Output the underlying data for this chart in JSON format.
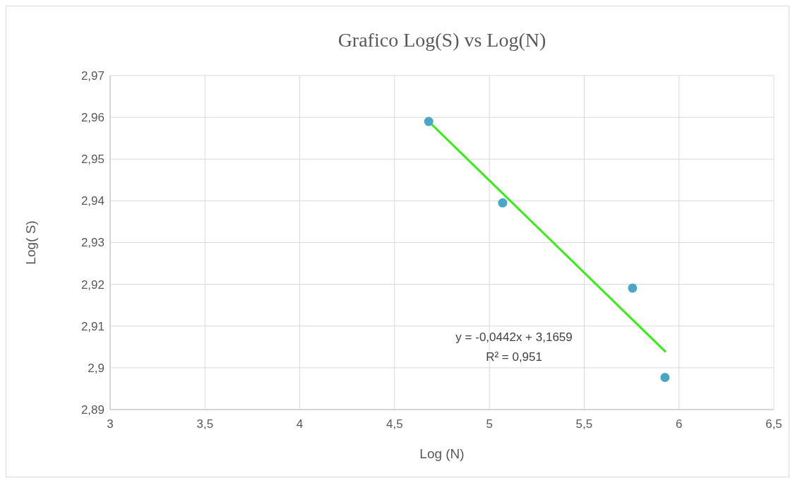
{
  "chart_data": {
    "type": "scatter",
    "title": "Grafico Log(S) vs Log(N)",
    "xlabel": "Log (N)",
    "ylabel": "Log( S)",
    "xlim": [
      3,
      6.5
    ],
    "ylim": [
      2.89,
      2.97
    ],
    "xticks": [
      3,
      {
        "value": 3.5,
        "label": "3,5"
      },
      4,
      {
        "value": 4.5,
        "label": "4,5"
      },
      5,
      {
        "value": 5.5,
        "label": "5,5"
      },
      6,
      {
        "value": 6.5,
        "label": "6,5"
      }
    ],
    "yticks": [
      {
        "value": 2.89,
        "label": "2,89"
      },
      {
        "value": 2.9,
        "label": "2,9"
      },
      {
        "value": 2.91,
        "label": "2,91"
      },
      {
        "value": 2.92,
        "label": "2,92"
      },
      {
        "value": 2.93,
        "label": "2,93"
      },
      {
        "value": 2.94,
        "label": "2,94"
      },
      {
        "value": 2.95,
        "label": "2,95"
      },
      {
        "value": 2.96,
        "label": "2,96"
      },
      {
        "value": 2.97,
        "label": "2,97"
      }
    ],
    "grid": true,
    "series": [
      {
        "marker": "circle",
        "color": "#4aa6c6",
        "x": [
          4.68,
          5.07,
          5.755,
          5.926
        ],
        "values": [
          2.959,
          2.9395,
          2.9191,
          2.8977
        ]
      },
      {
        "type": "line",
        "color": "#33ee11",
        "x": [
          4.68,
          5.93
        ],
        "values": [
          2.959,
          2.9038
        ],
        "line_style": "solid"
      }
    ],
    "annotations": [
      "y = -0,0442x + 3,1659",
      "R² = 0,951"
    ]
  }
}
